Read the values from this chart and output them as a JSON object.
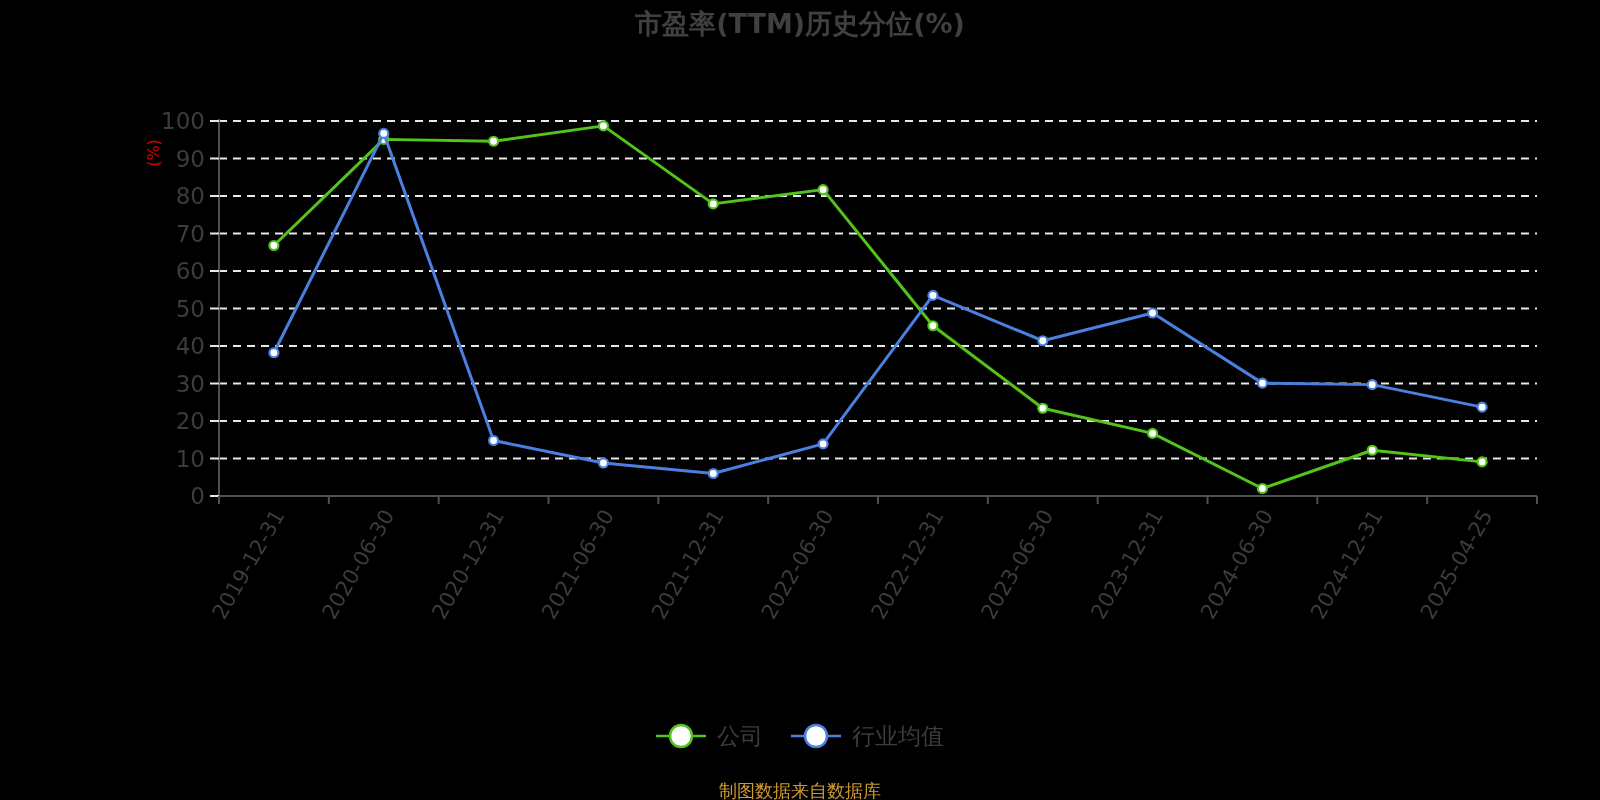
{
  "chart_data": {
    "type": "line",
    "title": "市盈率(TTM)历史分位(%)",
    "ylabel": "(%)",
    "categories": [
      "2019-12-31",
      "2020-06-30",
      "2020-12-31",
      "2021-06-30",
      "2021-12-31",
      "2022-06-30",
      "2022-12-31",
      "2023-06-30",
      "2023-12-31",
      "2024-06-30",
      "2024-12-31",
      "2025-04-25"
    ],
    "series": [
      {
        "name": "公司",
        "color": "#52c41a",
        "values": [
          66.8,
          95.1,
          94.6,
          98.7,
          77.9,
          81.7,
          45.4,
          23.4,
          16.7,
          2.0,
          12.2,
          9.1
        ]
      },
      {
        "name": "行业均值",
        "color": "#4a80e0",
        "values": [
          38.2,
          96.7,
          14.8,
          8.8,
          6.0,
          13.9,
          53.5,
          41.4,
          48.8,
          30.1,
          29.7,
          23.7
        ]
      }
    ],
    "ylim": [
      0,
      100
    ],
    "yticks": [
      0,
      10,
      20,
      30,
      40,
      50,
      60,
      70,
      80,
      90,
      100
    ],
    "grid": "y",
    "legend": "bottom",
    "marker": "circle",
    "line_style": "solid",
    "annotations": [
      "制图数据来自数据库"
    ]
  }
}
